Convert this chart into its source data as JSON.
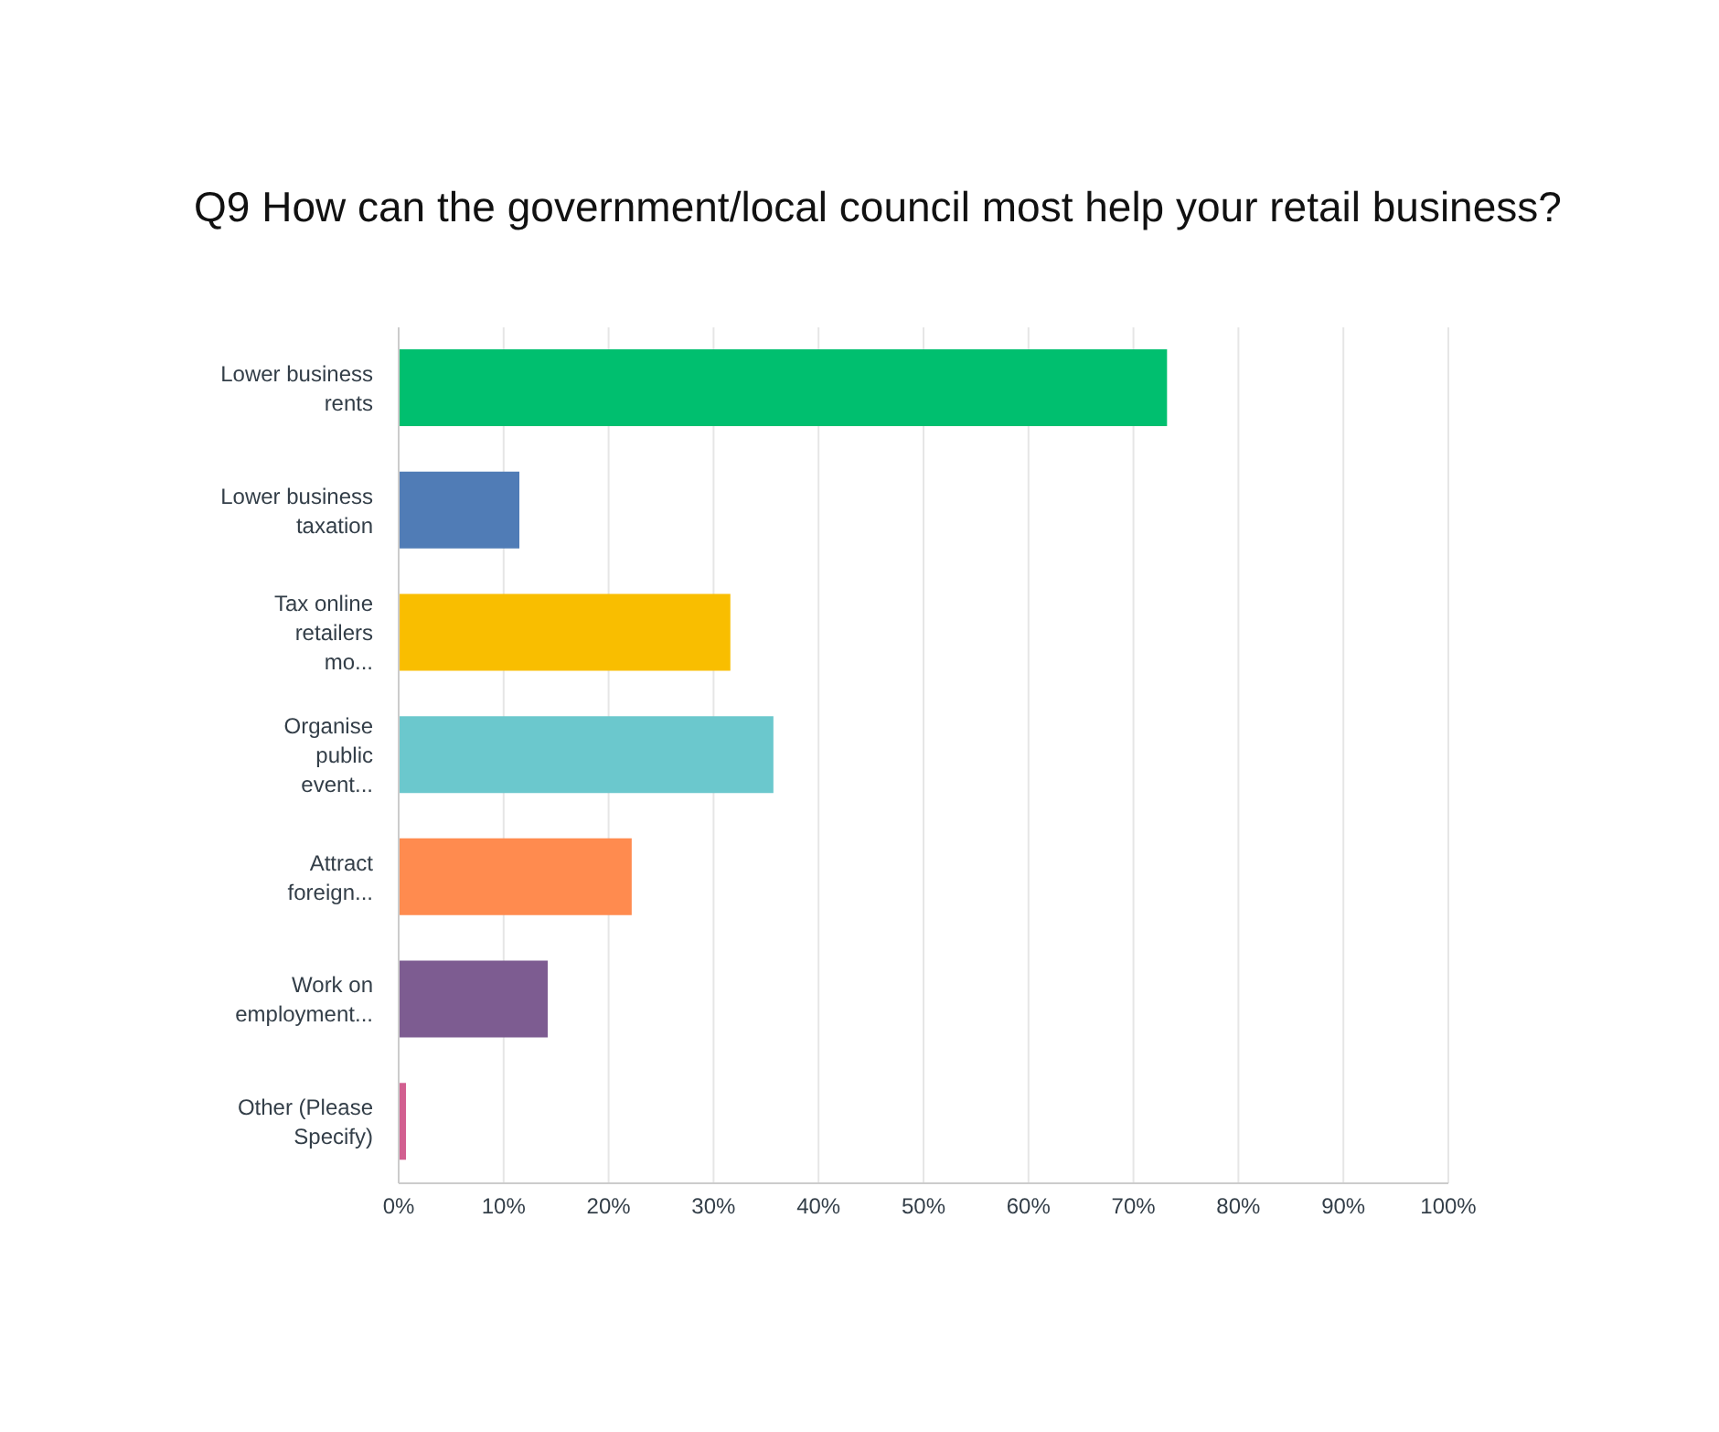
{
  "chart_data": {
    "type": "bar",
    "orientation": "horizontal",
    "title": "Q9 How can the government/local council most help your retail business?",
    "categories": [
      "Lower business rents",
      "Lower business taxation",
      "Tax online retailers mo...",
      "Organise public event...",
      "Attract foreign...",
      "Work on employment...",
      "Other (Please Specify)"
    ],
    "values": [
      73.2,
      11.5,
      31.6,
      35.7,
      22.2,
      14.2,
      0.7
    ],
    "colors": [
      "#00bf6f",
      "#507cb6",
      "#f9be00",
      "#6bc8cd",
      "#ff8b4f",
      "#7d5c91",
      "#d25f90"
    ],
    "xlim": [
      0,
      100
    ],
    "xticks": [
      {
        "value": 0,
        "label": "0%"
      },
      {
        "value": 10,
        "label": "10%"
      },
      {
        "value": 20,
        "label": "20%"
      },
      {
        "value": 30,
        "label": "30%"
      },
      {
        "value": 40,
        "label": "40%"
      },
      {
        "value": 50,
        "label": "50%"
      },
      {
        "value": 60,
        "label": "60%"
      },
      {
        "value": 70,
        "label": "70%"
      },
      {
        "value": 80,
        "label": "80%"
      },
      {
        "value": 90,
        "label": "90%"
      },
      {
        "value": 100,
        "label": "100%"
      }
    ],
    "grid": "x"
  }
}
